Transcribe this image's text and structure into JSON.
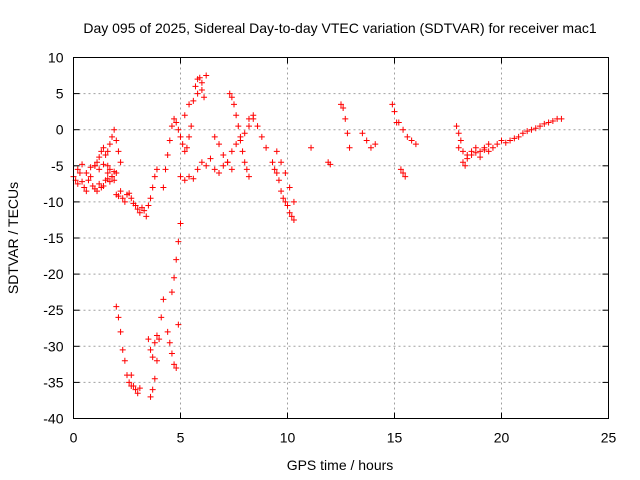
{
  "chart_data": {
    "type": "scatter",
    "title": "Day 095 of 2025, Sidereal Day-to-day VTEC variation (SDTVAR) for receiver mac1",
    "xlabel": "GPS time / hours",
    "ylabel": "SDTVAR / TECUs",
    "xlim": [
      0,
      25
    ],
    "ylim": [
      -40,
      10
    ],
    "xticks": [
      0,
      5,
      10,
      15,
      20,
      25
    ],
    "xtick_labels": [
      "0",
      "5",
      "10",
      "15",
      "20",
      "25"
    ],
    "yticks": [
      -40,
      -35,
      -30,
      -25,
      -20,
      -15,
      -10,
      -5,
      0,
      5,
      10
    ],
    "ytick_labels": [
      "-40",
      "-35",
      "-30",
      "-25",
      "-20",
      "-15",
      "-10",
      "-5",
      "0",
      "5",
      "10"
    ],
    "grid": true,
    "marker": "plus",
    "color": "#ff0000",
    "series": [
      {
        "name": "SDTVAR",
        "x": [
          0.0,
          0.1,
          0.2,
          0.3,
          0.4,
          0.5,
          0.6,
          0.7,
          0.8,
          0.9,
          1.0,
          1.1,
          1.2,
          1.3,
          1.4,
          1.5,
          1.6,
          1.7,
          1.8,
          1.9,
          0.2,
          0.4,
          0.6,
          0.8,
          1.0,
          1.2,
          1.4,
          1.6,
          1.0,
          1.1,
          1.2,
          1.3,
          1.4,
          1.5,
          1.6,
          1.7,
          1.8,
          1.9,
          2.0,
          2.1,
          2.2,
          1.6,
          1.7,
          1.8,
          1.9,
          2.0,
          2.0,
          2.1,
          2.2,
          2.3,
          2.4,
          2.5,
          2.6,
          2.7,
          2.8,
          2.9,
          3.0,
          3.1,
          3.2,
          3.3,
          3.4,
          3.5,
          3.6,
          3.7,
          3.8,
          3.9,
          2.0,
          2.1,
          2.2,
          2.3,
          2.4,
          2.5,
          2.6,
          2.7,
          2.7,
          2.8,
          2.9,
          3.0,
          3.1,
          3.6,
          3.7,
          3.8,
          3.9,
          4.0,
          4.1,
          4.2,
          3.5,
          3.6,
          3.7,
          3.8,
          3.9,
          4.4,
          4.5,
          4.6,
          4.7,
          4.8,
          4.9,
          4.6,
          4.7,
          4.8,
          4.9,
          5.0,
          4.2,
          4.3,
          4.4,
          4.5,
          4.6,
          4.7,
          4.8,
          4.9,
          5.0,
          5.1,
          5.2,
          5.3,
          5.4,
          5.5,
          5.0,
          5.2,
          5.4,
          5.6,
          5.8,
          6.0,
          6.2,
          6.4,
          6.6,
          6.8,
          7.0,
          7.2,
          7.4,
          5.2,
          5.4,
          5.6,
          5.8,
          6.0,
          6.2,
          5.7,
          5.8,
          5.9,
          6.0,
          6.1,
          6.6,
          6.8,
          7.0,
          7.2,
          7.4,
          7.6,
          7.8,
          8.0,
          8.2,
          8.4,
          7.3,
          7.4,
          7.5,
          7.6,
          7.7,
          7.8,
          7.9,
          8.0,
          8.1,
          8.2,
          8.2,
          8.4,
          8.6,
          8.8,
          9.0,
          9.3,
          9.4,
          9.5,
          9.6,
          9.7,
          9.8,
          9.9,
          10.0,
          10.1,
          10.2,
          10.3,
          9.5,
          9.7,
          9.9,
          10.1,
          10.3,
          11.1,
          11.9,
          12.0,
          12.5,
          12.6,
          12.7,
          12.8,
          12.9,
          13.5,
          13.7,
          13.9,
          14.1,
          14.9,
          15.0,
          15.1,
          15.2,
          15.4,
          15.6,
          15.8,
          16.0,
          15.3,
          15.4,
          15.5,
          17.9,
          18.0,
          18.1,
          18.2,
          18.3,
          18.0,
          18.2,
          18.4,
          18.6,
          18.8,
          19.0,
          19.2,
          19.4,
          19.6,
          19.8,
          20.0,
          20.2,
          20.4,
          20.6,
          20.8,
          21.0,
          21.2,
          21.4,
          21.6,
          21.8,
          22.0,
          22.2,
          22.4,
          22.6,
          22.8,
          18.4,
          18.6,
          18.8,
          19.0,
          19.2,
          19.4
        ],
        "y": [
          -6.5,
          -7.0,
          -7.5,
          -6.0,
          -7.2,
          -8.0,
          -8.5,
          -7.0,
          -6.5,
          -7.8,
          -8.2,
          -8.5,
          -7.5,
          -8.0,
          -7.8,
          -7.0,
          -6.8,
          -7.2,
          -6.5,
          -7.0,
          -5.5,
          -4.8,
          -6.0,
          -5.2,
          -5.0,
          -5.5,
          -4.8,
          -5.0,
          -5.0,
          -4.5,
          -3.8,
          -3.0,
          -2.5,
          -3.5,
          -3.0,
          -2.0,
          -1.0,
          0.0,
          -1.5,
          -3.0,
          -4.5,
          -6.0,
          -5.5,
          -6.5,
          -5.8,
          -6.0,
          -9.0,
          -9.2,
          -8.5,
          -9.5,
          -10.0,
          -9.0,
          -8.8,
          -9.5,
          -10.2,
          -10.5,
          -11.0,
          -11.5,
          -10.8,
          -11.2,
          -12.0,
          -10.5,
          -9.5,
          -8.0,
          -6.5,
          -5.5,
          -24.5,
          -26.0,
          -28.0,
          -30.5,
          -32.0,
          -34.0,
          -35.0,
          -35.5,
          -34.0,
          -35.5,
          -36.0,
          -36.5,
          -35.8,
          -37.0,
          -36.0,
          -34.5,
          -32.0,
          -29.0,
          -26.0,
          -23.5,
          -29.0,
          -30.5,
          -31.5,
          -29.5,
          -28.5,
          -28.0,
          -29.5,
          -31.0,
          -32.5,
          -33.0,
          -27.0,
          -22.5,
          -20.5,
          -18.0,
          -15.5,
          -13.0,
          -8.0,
          -5.5,
          -3.5,
          -1.5,
          0.5,
          1.5,
          1.0,
          0.0,
          -1.0,
          -2.0,
          -3.0,
          -2.5,
          -1.0,
          0.5,
          -6.5,
          -7.0,
          -6.5,
          -6.8,
          -5.5,
          -4.5,
          -5.0,
          -4.0,
          -5.5,
          -6.0,
          -5.0,
          -4.5,
          -5.5,
          2.0,
          3.5,
          4.0,
          5.0,
          6.5,
          7.5,
          6.0,
          7.0,
          7.2,
          5.5,
          4.5,
          -1.0,
          -2.0,
          -3.5,
          -4.5,
          -3.0,
          -2.0,
          -1.5,
          -0.5,
          0.5,
          1.5,
          5.0,
          4.5,
          3.5,
          2.0,
          0.5,
          -1.0,
          -3.0,
          -4.5,
          -5.5,
          -6.5,
          1.5,
          2.0,
          0.5,
          -1.0,
          -2.5,
          -4.5,
          -5.5,
          -6.0,
          -7.0,
          -8.5,
          -9.5,
          -10.0,
          -10.5,
          -11.5,
          -12.0,
          -12.5,
          -3.0,
          -4.5,
          -6.0,
          -8.0,
          -10.0,
          -2.5,
          -4.5,
          -4.8,
          3.5,
          3.0,
          1.5,
          -0.5,
          -2.5,
          -0.5,
          -1.5,
          -2.5,
          -2.0,
          3.5,
          2.5,
          1.0,
          1.0,
          0.0,
          -1.0,
          -1.5,
          -2.0,
          -5.5,
          -6.0,
          -6.5,
          0.5,
          -0.5,
          -1.5,
          -4.5,
          -5.0,
          -2.5,
          -3.0,
          -3.5,
          -3.0,
          -2.5,
          -3.0,
          -2.5,
          -2.0,
          -2.5,
          -2.0,
          -1.5,
          -1.8,
          -1.5,
          -1.2,
          -1.0,
          -0.5,
          -0.2,
          0.0,
          0.2,
          0.5,
          0.8,
          1.0,
          1.2,
          1.5,
          1.5,
          -4.0,
          -3.5,
          -3.2,
          -3.8,
          -2.8,
          -3.0
        ]
      }
    ]
  }
}
